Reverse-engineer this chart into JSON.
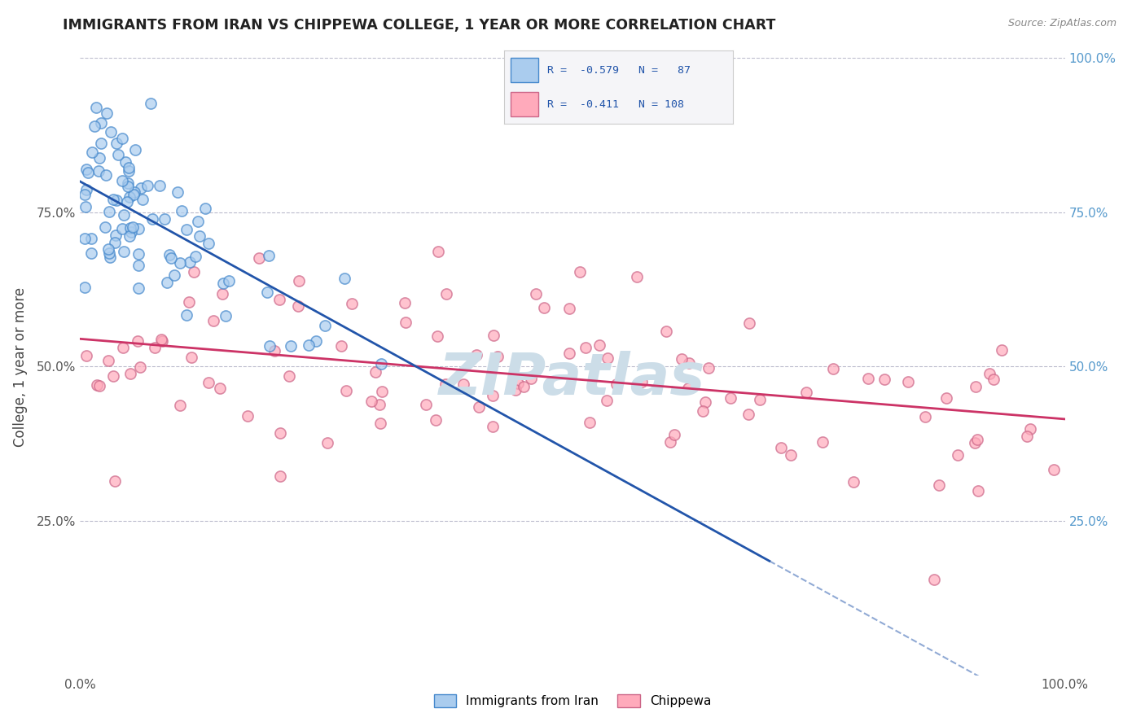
{
  "title": "IMMIGRANTS FROM IRAN VS CHIPPEWA COLLEGE, 1 YEAR OR MORE CORRELATION CHART",
  "source_text": "Source: ZipAtlas.com",
  "ylabel": "College, 1 year or more",
  "xlim": [
    0.0,
    1.0
  ],
  "ylim": [
    0.0,
    1.0
  ],
  "legend_r1": "-0.579",
  "legend_n1": "87",
  "legend_r2": "-0.411",
  "legend_n2": "108",
  "blue_fill": "#aaccee",
  "blue_edge": "#4488cc",
  "pink_fill": "#ffaabb",
  "pink_edge": "#cc6688",
  "blue_line_color": "#2255aa",
  "pink_line_color": "#cc3366",
  "watermark_color": "#ccdde8",
  "grid_color": "#bbbbcc",
  "background_color": "#ffffff",
  "right_tick_color": "#5599cc",
  "figsize": [
    14.06,
    8.92
  ],
  "dpi": 100,
  "blue_trend_start_y": 0.8,
  "blue_trend_end_y": 0.185,
  "blue_trend_end_x": 0.7,
  "pink_trend_start_y": 0.545,
  "pink_trend_end_y": 0.415
}
